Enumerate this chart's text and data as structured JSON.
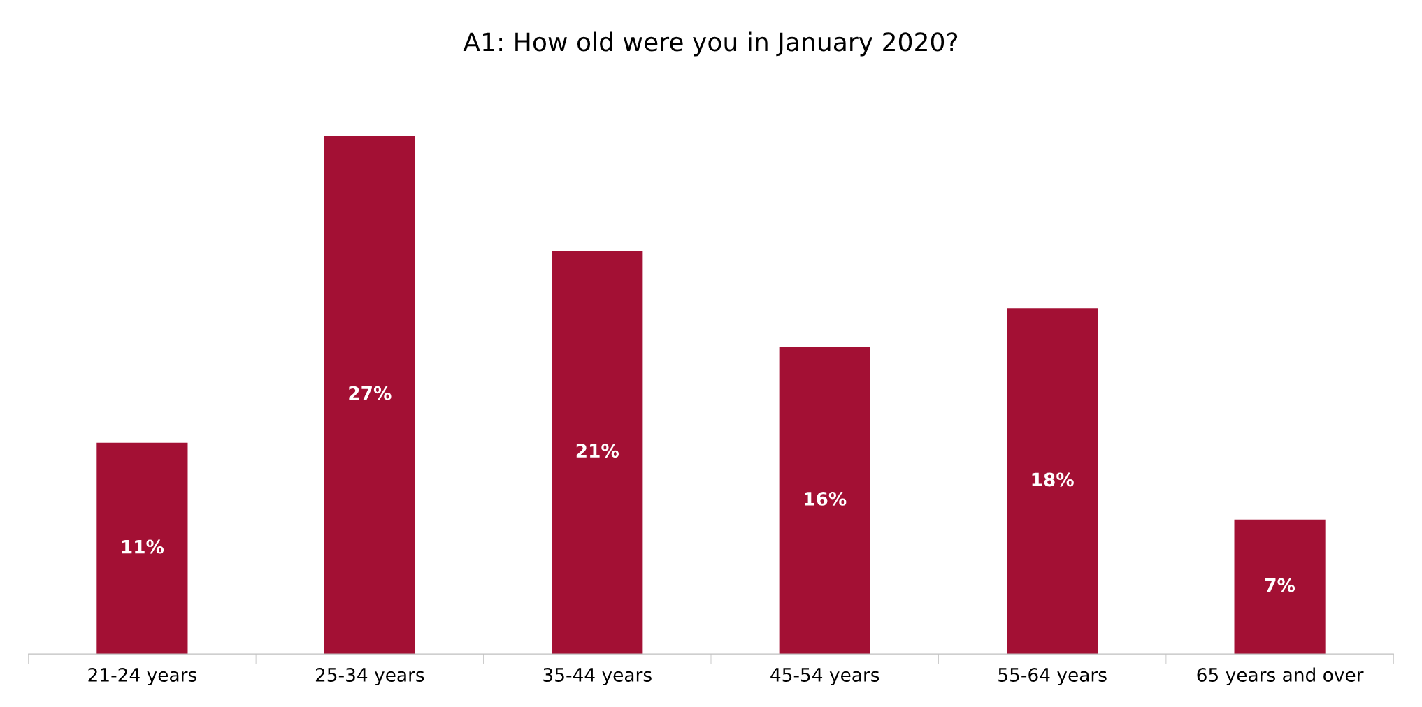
{
  "chart_data": {
    "type": "bar",
    "title": "A1: How old were you in January 2020?",
    "categories": [
      "21-24 years",
      "25-34 years",
      "35-44 years",
      "45-54 years",
      "55-64 years",
      "65 years and over"
    ],
    "values": [
      11,
      27,
      21,
      16,
      18,
      7
    ],
    "value_labels": [
      "11%",
      "27%",
      "21%",
      "16%",
      "18%",
      "7%"
    ],
    "color": "#a31034",
    "grid": false,
    "legend": false
  }
}
